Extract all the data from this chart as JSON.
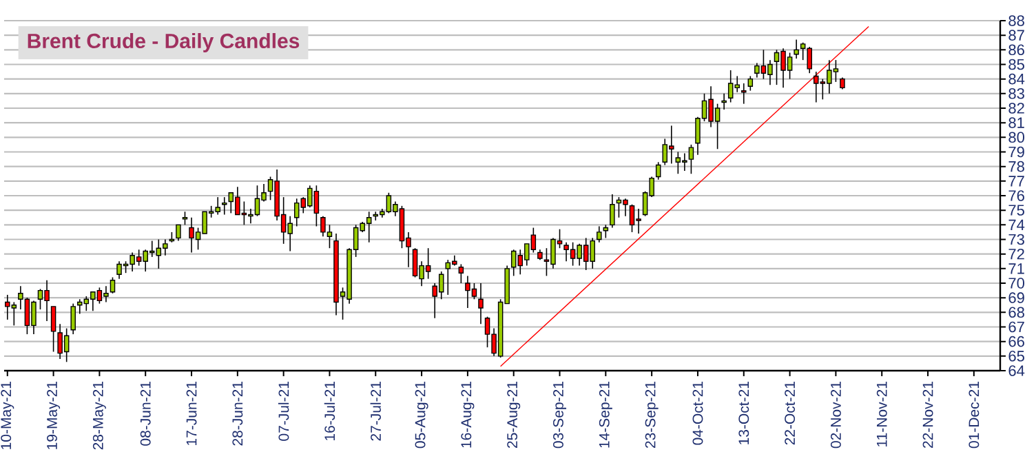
{
  "chart_data": {
    "type": "candlestick",
    "title": "Brent Crude - Daily Candles",
    "categories": [
      "10-May-21",
      null,
      null,
      null,
      null,
      null,
      null,
      "19-May-21",
      null,
      null,
      null,
      null,
      null,
      null,
      "28-May-21",
      null,
      null,
      null,
      null,
      null,
      null,
      "08-Jun-21",
      null,
      null,
      null,
      null,
      null,
      null,
      "17-Jun-21",
      null,
      null,
      null,
      null,
      null,
      null,
      "28-Jun-21",
      null,
      null,
      null,
      null,
      null,
      null,
      "07-Jul-21",
      null,
      null,
      null,
      null,
      null,
      null,
      "16-Jul-21",
      null,
      null,
      null,
      null,
      null,
      null,
      "27-Jul-21",
      null,
      null,
      null,
      null,
      null,
      null,
      "05-Aug-21",
      null,
      null,
      null,
      null,
      null,
      null,
      "16-Aug-21",
      null,
      null,
      null,
      null,
      null,
      null,
      "25-Aug-21",
      null,
      null,
      null,
      null,
      null,
      null,
      "03-Sep-21",
      null,
      null,
      null,
      null,
      null,
      null,
      "14-Sep-21",
      null,
      null,
      null,
      null,
      null,
      null,
      "23-Sep-21",
      null,
      null,
      null,
      null,
      null,
      null,
      "04-Oct-21",
      null,
      null,
      null,
      null,
      null,
      null,
      "13-Oct-21",
      null,
      null,
      null,
      null,
      null,
      null,
      "22-Oct-21",
      null,
      null,
      null,
      null,
      null,
      null,
      "02-Nov-21",
      null,
      null,
      null,
      null,
      null,
      null,
      "11-Nov-21",
      null,
      null,
      null,
      null,
      null,
      null,
      "22-Nov-21",
      null,
      null,
      null,
      null,
      null,
      null,
      "01-Dec-21"
    ],
    "ohlc": [
      [
        68.7,
        69.2,
        67.5,
        68.4
      ],
      [
        68.3,
        68.7,
        67.1,
        68.5
      ],
      [
        68.9,
        69.8,
        68.2,
        69.3
      ],
      [
        68.9,
        69.0,
        66.5,
        67.1
      ],
      [
        67.1,
        68.8,
        66.5,
        68.7
      ],
      [
        68.9,
        69.6,
        68.2,
        69.5
      ],
      [
        69.5,
        70.2,
        67.4,
        68.8
      ],
      [
        68.4,
        68.4,
        65.3,
        66.7
      ],
      [
        66.6,
        67.2,
        64.8,
        65.2
      ],
      [
        65.3,
        66.9,
        64.6,
        66.4
      ],
      [
        66.8,
        68.6,
        66.5,
        68.4
      ],
      [
        68.5,
        68.9,
        67.9,
        68.7
      ],
      [
        68.6,
        69.1,
        68.1,
        68.9
      ],
      [
        68.9,
        69.4,
        68.1,
        69.4
      ],
      [
        69.5,
        69.7,
        68.6,
        68.8
      ],
      [
        69.1,
        69.8,
        68.7,
        69.3
      ],
      [
        69.4,
        70.4,
        69.3,
        70.2
      ],
      [
        70.6,
        71.5,
        70.3,
        71.3
      ],
      [
        71.2,
        71.5,
        70.7,
        71.3
      ],
      [
        71.3,
        72.1,
        70.8,
        71.9
      ],
      [
        71.8,
        72.3,
        71.2,
        71.5
      ],
      [
        71.5,
        72.3,
        70.8,
        72.2
      ],
      [
        72.1,
        72.9,
        71.8,
        72.2
      ],
      [
        71.9,
        73.0,
        71.0,
        72.4
      ],
      [
        72.4,
        73.0,
        71.9,
        72.7
      ],
      [
        72.9,
        73.5,
        72.8,
        73.0
      ],
      [
        73.1,
        74.0,
        72.9,
        74.0
      ],
      [
        74.4,
        74.9,
        74.0,
        74.5
      ],
      [
        73.8,
        74.5,
        72.1,
        73.1
      ],
      [
        73.0,
        73.8,
        72.3,
        73.5
      ],
      [
        73.4,
        74.9,
        73.4,
        74.9
      ],
      [
        74.8,
        75.3,
        74.5,
        74.9
      ],
      [
        74.9,
        75.9,
        74.7,
        75.2
      ],
      [
        75.4,
        75.9,
        74.7,
        75.5
      ],
      [
        75.6,
        76.2,
        74.8,
        76.2
      ],
      [
        75.9,
        76.6,
        74.7,
        74.7
      ],
      [
        74.8,
        75.6,
        74.0,
        74.7
      ],
      [
        74.6,
        75.1,
        74.1,
        74.7
      ],
      [
        74.7,
        76.7,
        74.6,
        75.8
      ],
      [
        75.7,
        76.8,
        75.6,
        76.2
      ],
      [
        76.3,
        77.3,
        75.7,
        77.1
      ],
      [
        77.0,
        77.8,
        74.3,
        74.6
      ],
      [
        74.7,
        75.9,
        72.7,
        73.5
      ],
      [
        73.4,
        74.6,
        72.2,
        74.1
      ],
      [
        74.5,
        75.8,
        73.9,
        75.5
      ],
      [
        75.8,
        75.9,
        74.8,
        75.2
      ],
      [
        75.3,
        76.7,
        75.2,
        76.5
      ],
      [
        76.3,
        76.7,
        73.9,
        74.8
      ],
      [
        74.5,
        74.6,
        73.2,
        73.5
      ],
      [
        73.2,
        74.0,
        72.4,
        73.5
      ],
      [
        72.9,
        73.4,
        67.8,
        68.7
      ],
      [
        69.1,
        69.7,
        67.5,
        69.4
      ],
      [
        68.9,
        72.4,
        68.6,
        72.3
      ],
      [
        72.3,
        74.0,
        71.8,
        73.8
      ],
      [
        73.6,
        74.2,
        73.5,
        74.1
      ],
      [
        74.1,
        74.9,
        72.8,
        74.5
      ],
      [
        74.6,
        74.9,
        74.3,
        74.7
      ],
      [
        74.7,
        75.1,
        74.5,
        74.9
      ],
      [
        74.9,
        76.2,
        74.8,
        76.0
      ],
      [
        74.9,
        75.6,
        74.6,
        75.4
      ],
      [
        75.1,
        75.3,
        72.4,
        72.9
      ],
      [
        73.1,
        73.5,
        71.1,
        72.5
      ],
      [
        72.3,
        72.4,
        70.4,
        70.5
      ],
      [
        70.3,
        71.5,
        69.8,
        71.2
      ],
      [
        71.2,
        72.4,
        70.3,
        70.8
      ],
      [
        69.8,
        70.0,
        67.6,
        69.1
      ],
      [
        69.4,
        70.8,
        68.9,
        70.6
      ],
      [
        71.0,
        71.6,
        69.2,
        71.4
      ],
      [
        71.5,
        71.9,
        71.2,
        71.3
      ],
      [
        71.1,
        71.3,
        70.0,
        70.7
      ],
      [
        70.0,
        70.5,
        68.3,
        69.5
      ],
      [
        69.6,
        70.0,
        68.9,
        69.1
      ],
      [
        68.9,
        70.0,
        67.2,
        68.3
      ],
      [
        67.6,
        67.7,
        65.6,
        66.5
      ],
      [
        66.5,
        66.9,
        65.0,
        65.2
      ],
      [
        65.0,
        68.9,
        64.9,
        68.7
      ],
      [
        68.6,
        71.2,
        68.6,
        71.0
      ],
      [
        71.1,
        72.3,
        70.5,
        72.2
      ],
      [
        71.9,
        72.3,
        70.6,
        71.2
      ],
      [
        71.6,
        72.7,
        71.2,
        72.7
      ],
      [
        73.3,
        73.8,
        72.1,
        72.3
      ],
      [
        72.1,
        72.3,
        71.6,
        71.7
      ],
      [
        71.6,
        72.4,
        70.5,
        71.5
      ],
      [
        71.3,
        73.1,
        71.0,
        73.0
      ],
      [
        72.9,
        73.7,
        72.4,
        72.7
      ],
      [
        72.6,
        72.8,
        71.5,
        72.3
      ],
      [
        72.3,
        72.8,
        71.2,
        71.7
      ],
      [
        71.7,
        72.7,
        71.2,
        72.6
      ],
      [
        72.6,
        73.1,
        70.9,
        71.5
      ],
      [
        71.5,
        73.1,
        71.0,
        72.9
      ],
      [
        73.0,
        73.9,
        72.8,
        73.5
      ],
      [
        73.6,
        74.0,
        73.1,
        73.8
      ],
      [
        74.0,
        76.1,
        73.8,
        75.4
      ],
      [
        75.5,
        75.9,
        74.5,
        75.7
      ],
      [
        75.7,
        75.8,
        74.6,
        75.4
      ],
      [
        75.3,
        75.4,
        73.5,
        74.0
      ],
      [
        74.4,
        75.1,
        73.4,
        74.3
      ],
      [
        74.7,
        76.3,
        74.6,
        76.2
      ],
      [
        76.0,
        77.3,
        75.9,
        77.2
      ],
      [
        77.3,
        78.3,
        77.1,
        78.1
      ],
      [
        78.3,
        79.9,
        78.1,
        79.5
      ],
      [
        79.4,
        80.8,
        78.2,
        79.2
      ],
      [
        78.3,
        79.0,
        77.5,
        78.6
      ],
      [
        78.3,
        78.9,
        77.7,
        78.4
      ],
      [
        78.5,
        79.5,
        77.5,
        79.3
      ],
      [
        79.6,
        81.4,
        78.8,
        81.3
      ],
      [
        81.3,
        83.0,
        81.1,
        82.5
      ],
      [
        82.6,
        83.5,
        80.7,
        81.1
      ],
      [
        81.1,
        82.3,
        79.2,
        82.0
      ],
      [
        82.4,
        83.0,
        81.9,
        82.5
      ],
      [
        82.7,
        84.6,
        82.4,
        83.7
      ],
      [
        83.4,
        84.2,
        83.1,
        83.6
      ],
      [
        83.2,
        83.7,
        82.3,
        83.1
      ],
      [
        83.5,
        84.2,
        83.2,
        84.0
      ],
      [
        84.4,
        85.1,
        84.1,
        84.9
      ],
      [
        84.9,
        86.0,
        84.0,
        84.4
      ],
      [
        84.3,
        85.3,
        83.6,
        85.0
      ],
      [
        85.2,
        86.0,
        83.6,
        85.8
      ],
      [
        85.9,
        86.1,
        83.4,
        84.6
      ],
      [
        84.6,
        85.8,
        84.0,
        85.5
      ],
      [
        85.7,
        86.7,
        85.4,
        86.0
      ],
      [
        86.1,
        86.5,
        85.3,
        86.4
      ],
      [
        86.1,
        86.2,
        84.4,
        84.7
      ],
      [
        84.2,
        84.5,
        82.4,
        83.7
      ],
      [
        83.8,
        84.0,
        82.6,
        83.7
      ],
      [
        83.7,
        85.3,
        83.0,
        84.6
      ],
      [
        84.5,
        85.3,
        83.8,
        84.7
      ],
      [
        84.0,
        84.1,
        83.3,
        83.4
      ],
      null,
      null,
      null,
      null,
      null,
      null,
      null,
      null,
      null,
      null,
      null,
      null,
      null,
      null,
      null,
      null,
      null,
      null,
      null,
      null
    ],
    "colors": [
      "#ff0000",
      "#99cc00",
      "#99cc00",
      "#ff0000",
      "#99cc00",
      "#99cc00",
      "#ff0000",
      "#ff0000",
      "#ff0000",
      "#99cc00",
      "#99cc00",
      "#99cc00",
      "#99cc00",
      "#99cc00",
      "#ff0000",
      "#99cc00",
      "#99cc00",
      "#99cc00",
      "#99cc00",
      "#99cc00",
      "#ff0000",
      "#99cc00",
      "#99cc00",
      "#99cc00",
      "#99cc00",
      "#99cc00",
      "#99cc00",
      "#99cc00",
      "#ff0000",
      "#99cc00",
      "#99cc00",
      "#99cc00",
      "#99cc00",
      "#99cc00",
      "#99cc00",
      "#ff0000",
      "#ff0000",
      "#99cc00",
      "#99cc00",
      "#99cc00",
      "#99cc00",
      "#ff0000",
      "#ff0000",
      "#99cc00",
      "#99cc00",
      "#ff0000",
      "#99cc00",
      "#ff0000",
      "#ff0000",
      "#99cc00",
      "#ff0000",
      "#99cc00",
      "#99cc00",
      "#99cc00",
      "#99cc00",
      "#99cc00",
      "#99cc00",
      "#99cc00",
      "#99cc00",
      "#99cc00",
      "#ff0000",
      "#ff0000",
      "#ff0000",
      "#99cc00",
      "#ff0000",
      "#ff0000",
      "#99cc00",
      "#99cc00",
      "#ff0000",
      "#ff0000",
      "#ff0000",
      "#ff0000",
      "#ff0000",
      "#ff0000",
      "#ff0000",
      "#99cc00",
      "#99cc00",
      "#99cc00",
      "#ff0000",
      "#99cc00",
      "#ff0000",
      "#ff0000",
      "#ff0000",
      "#99cc00",
      "#ff0000",
      "#ff0000",
      "#ff0000",
      "#99cc00",
      "#ff0000",
      "#99cc00",
      "#99cc00",
      "#99cc00",
      "#99cc00",
      "#99cc00",
      "#ff0000",
      "#ff0000",
      "#ff0000",
      "#99cc00",
      "#99cc00",
      "#99cc00",
      "#99cc00",
      "#ff0000",
      "#99cc00",
      "#99cc00",
      "#99cc00",
      "#99cc00",
      "#99cc00",
      "#ff0000",
      "#99cc00",
      "#99cc00",
      "#99cc00",
      "#99cc00",
      "#ff0000",
      "#99cc00",
      "#99cc00",
      "#ff0000",
      "#99cc00",
      "#99cc00",
      "#ff0000",
      "#99cc00",
      "#99cc00",
      "#99cc00",
      "#ff0000",
      "#ff0000",
      "#ff0000",
      "#99cc00",
      "#99cc00",
      "#ff0000",
      null,
      null,
      null,
      null,
      null,
      null,
      null,
      null,
      null,
      null,
      null,
      null,
      null,
      null,
      null,
      null,
      null,
      null,
      null,
      null
    ],
    "series": [
      {
        "type": "line",
        "values": [
          null,
          null,
          null,
          null,
          null,
          null,
          null,
          null,
          null,
          null,
          null,
          null,
          null,
          null,
          null,
          null,
          null,
          null,
          null,
          null,
          null,
          null,
          null,
          null,
          null,
          null,
          null,
          null,
          null,
          null,
          null,
          null,
          null,
          null,
          null,
          null,
          null,
          null,
          null,
          null,
          null,
          null,
          null,
          null,
          null,
          null,
          null,
          null,
          null,
          null,
          null,
          null,
          null,
          null,
          null,
          null,
          null,
          null,
          null,
          null,
          null,
          null,
          null,
          null,
          null,
          null,
          null,
          null,
          null,
          null,
          null,
          null,
          null,
          null,
          null,
          64.3,
          null,
          null,
          null,
          null,
          null,
          null,
          null,
          null,
          null,
          null,
          null,
          null,
          null,
          null,
          null,
          null,
          null,
          null,
          null,
          null,
          null,
          null,
          null,
          null,
          null,
          null,
          null,
          null,
          null,
          null,
          null,
          null,
          null,
          null,
          null,
          null,
          null,
          null,
          null,
          null,
          null,
          null,
          null,
          null,
          null,
          null,
          null,
          null,
          null,
          null,
          null,
          null,
          null,
          null,
          null,
          87.6,
          null,
          null,
          null,
          null,
          null,
          null,
          null,
          null,
          null,
          null,
          null,
          null,
          null,
          null,
          null,
          null
        ],
        "color": "#ff0000"
      }
    ],
    "ylim": [
      64,
      88
    ],
    "yticks": [
      64,
      65,
      66,
      67,
      68,
      69,
      70,
      71,
      72,
      73,
      74,
      75,
      76,
      77,
      78,
      79,
      80,
      81,
      82,
      83,
      84,
      85,
      86,
      87,
      88
    ],
    "grid": "y"
  }
}
